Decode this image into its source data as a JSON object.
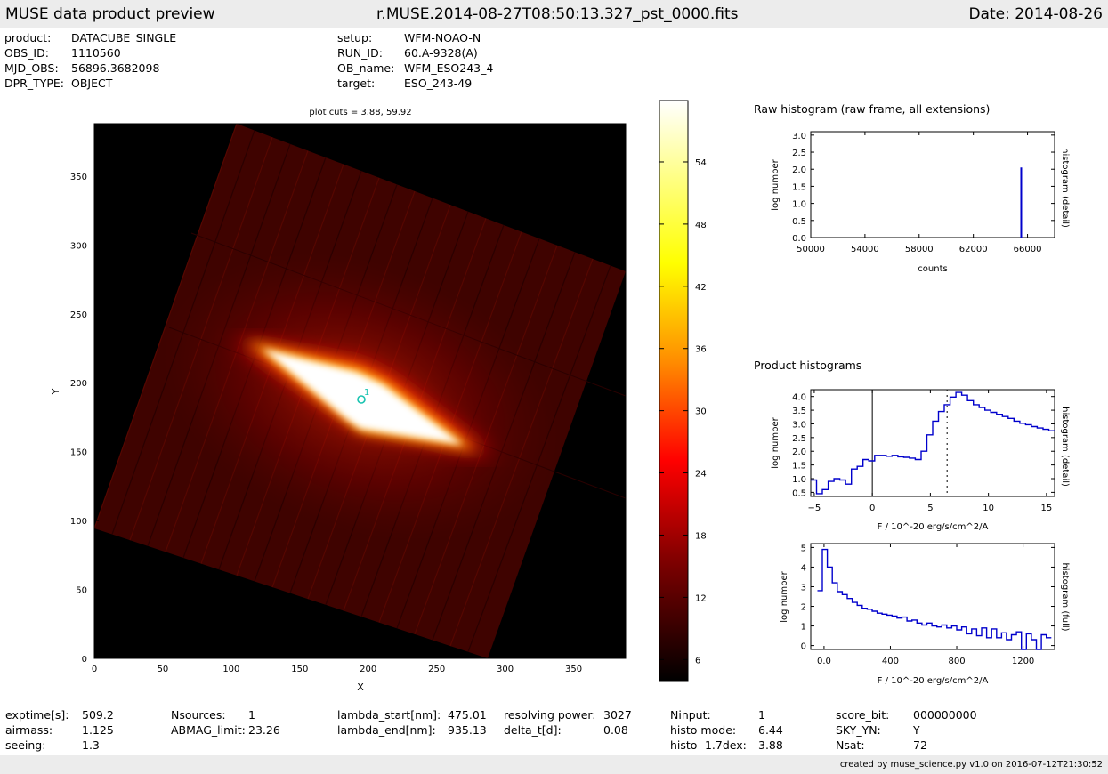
{
  "header": {
    "title": "MUSE data product preview",
    "filename": "r.MUSE.2014-08-27T08:50:13.327_pst_0000.fits",
    "date": "Date: 2014-08-26"
  },
  "info_left": [
    {
      "label": "product:",
      "value": "DATACUBE_SINGLE"
    },
    {
      "label": "OBS_ID:",
      "value": "1110560"
    },
    {
      "label": "MJD_OBS:",
      "value": "56896.3682098"
    },
    {
      "label": "DPR_TYPE:",
      "value": "OBJECT"
    }
  ],
  "info_right": [
    {
      "label": "setup:",
      "value": "WFM-NOAO-N"
    },
    {
      "label": "RUN_ID:",
      "value": "60.A-9328(A)"
    },
    {
      "label": "OB_name:",
      "value": "WFM_ESO243_4"
    },
    {
      "label": "target:",
      "value": "ESO_243-49"
    }
  ],
  "image": {
    "title": "plot cuts = 3.88, 59.92",
    "xlabel": "X",
    "ylabel": "Y",
    "xticks": [
      "0",
      "50",
      "100",
      "150",
      "200",
      "250",
      "300",
      "350"
    ],
    "yticks": [
      "0",
      "50",
      "100",
      "150",
      "200",
      "250",
      "300",
      "350"
    ],
    "source_label": "1",
    "colorbar_ticks": [
      "54",
      "48",
      "42",
      "36",
      "30",
      "24",
      "18",
      "12",
      "6"
    ]
  },
  "raw_hist": {
    "title": "Raw histogram (raw frame, all extensions)",
    "ylabel": "log number",
    "xlabel": "counts",
    "right_label": "histogram (detail)",
    "xticks": [
      "50000",
      "54000",
      "58000",
      "62000",
      "66000"
    ],
    "yticks": [
      "0.0",
      "0.5",
      "1.0",
      "1.5",
      "2.0",
      "2.5",
      "3.0"
    ]
  },
  "product_hist_title": "Product histograms",
  "detail_hist": {
    "ylabel": "log number",
    "xlabel": "F / 10^-20 erg/s/cm^2/A",
    "right_label": "histogram (detail)",
    "xticks": [
      "−5",
      "0",
      "5",
      "10",
      "15"
    ],
    "yticks": [
      "0.5",
      "1.0",
      "1.5",
      "2.0",
      "2.5",
      "3.0",
      "3.5",
      "4.0"
    ]
  },
  "full_hist": {
    "ylabel": "log number",
    "xlabel": "F / 10^-20 erg/s/cm^2/A",
    "right_label": "histogram (full)",
    "xticks": [
      "0.0",
      "400",
      "800",
      "1200"
    ],
    "yticks": [
      "0",
      "1",
      "2",
      "3",
      "4",
      "5"
    ]
  },
  "stats": [
    [
      {
        "label": "exptime[s]:",
        "value": "509.2"
      },
      {
        "label": "airmass:",
        "value": "1.125"
      },
      {
        "label": "seeing:",
        "value": "1.3"
      }
    ],
    [
      {
        "label": "Nsources:",
        "value": "1"
      },
      {
        "label": "ABMAG_limit:",
        "value": "23.26"
      }
    ],
    [
      {
        "label": "lambda_start[nm]:",
        "value": "475.01"
      },
      {
        "label": "lambda_end[nm]:",
        "value": "935.13"
      }
    ],
    [
      {
        "label": "resolving power:",
        "value": "3027"
      },
      {
        "label": "delta_t[d]:",
        "value": "0.08"
      }
    ],
    [
      {
        "label": "Ninput:",
        "value": "1"
      },
      {
        "label": "histo mode:",
        "value": "6.44"
      },
      {
        "label": "histo -1.7dex:",
        "value": "3.88"
      }
    ],
    [
      {
        "label": "score_bit:",
        "value": "000000000"
      },
      {
        "label": "SKY_YN:",
        "value": "Y"
      },
      {
        "label": "Nsat:",
        "value": "72"
      }
    ]
  ],
  "footer": "created by muse_science.py v1.0 on 2016-07-12T21:30:52",
  "colors": {
    "bar_bg": "#ececec",
    "hist_line": "#0000cc",
    "marker": "#19c3b0"
  },
  "chart_data": [
    {
      "type": "heatmap",
      "title": "plot cuts = 3.88, 59.92",
      "xlabel": "X",
      "ylabel": "Y",
      "xlim": [
        0,
        388
      ],
      "ylim": [
        0,
        388
      ],
      "value_range": [
        3.88,
        59.92
      ],
      "colormap": "hot",
      "sources": [
        {
          "id": "1",
          "x": 195,
          "y": 188
        }
      ]
    },
    {
      "type": "bar",
      "title": "Raw histogram (raw frame, all extensions)",
      "xlabel": "counts",
      "ylabel": "log number",
      "xlim": [
        50000,
        68000
      ],
      "ylim": [
        0,
        3.1
      ],
      "x": [
        65535
      ],
      "values": [
        2.05
      ]
    },
    {
      "type": "line",
      "title": "Product histograms",
      "xlabel": "F / 10^-20 erg/s/cm^2/A",
      "ylabel": "log number",
      "xlim": [
        -5.3,
        15.7
      ],
      "ylim": [
        0.35,
        4.25
      ],
      "vlines": [
        0,
        6.44
      ],
      "x": [
        -5.3,
        -4.8,
        -4.3,
        -3.8,
        -3.3,
        -2.8,
        -2.3,
        -1.8,
        -1.3,
        -0.8,
        -0.3,
        0.2,
        0.7,
        1.2,
        1.7,
        2.2,
        2.7,
        3.2,
        3.7,
        4.2,
        4.7,
        5.2,
        5.7,
        6.2,
        6.7,
        7.2,
        7.7,
        8.2,
        8.7,
        9.2,
        9.7,
        10.2,
        10.7,
        11.2,
        11.7,
        12.2,
        12.7,
        13.2,
        13.7,
        14.2,
        14.7,
        15.2
      ],
      "values": [
        0.95,
        0.45,
        0.6,
        0.9,
        1.0,
        0.95,
        0.8,
        1.35,
        1.45,
        1.7,
        1.65,
        1.85,
        1.85,
        1.82,
        1.85,
        1.8,
        1.78,
        1.75,
        1.7,
        2.0,
        2.6,
        3.1,
        3.45,
        3.7,
        3.98,
        4.15,
        4.05,
        3.85,
        3.7,
        3.6,
        3.5,
        3.42,
        3.35,
        3.27,
        3.2,
        3.1,
        3.02,
        2.97,
        2.9,
        2.85,
        2.8,
        2.75
      ]
    },
    {
      "type": "line",
      "title": "",
      "xlabel": "F / 10^-20 erg/s/cm^2/A",
      "ylabel": "log number",
      "xlim": [
        -80,
        1390
      ],
      "ylim": [
        -0.2,
        5.2
      ],
      "x": [
        -40,
        -10,
        20,
        50,
        80,
        110,
        140,
        170,
        200,
        230,
        260,
        290,
        320,
        350,
        380,
        410,
        440,
        470,
        500,
        530,
        560,
        590,
        620,
        650,
        680,
        710,
        740,
        770,
        800,
        830,
        860,
        890,
        920,
        950,
        980,
        1010,
        1040,
        1070,
        1100,
        1130,
        1160,
        1190,
        1220,
        1250,
        1280,
        1310,
        1340
      ],
      "values": [
        2.8,
        4.9,
        4.0,
        3.2,
        2.75,
        2.6,
        2.4,
        2.2,
        2.05,
        1.9,
        1.85,
        1.75,
        1.65,
        1.6,
        1.55,
        1.5,
        1.4,
        1.45,
        1.25,
        1.3,
        1.15,
        1.05,
        1.15,
        1.0,
        0.95,
        1.05,
        0.9,
        1.0,
        0.8,
        0.95,
        0.6,
        0.85,
        0.5,
        0.9,
        0.4,
        0.85,
        0.4,
        0.65,
        0.3,
        0.55,
        0.7,
        0.0,
        0.6,
        0.3,
        0.0,
        0.55,
        0.4
      ]
    }
  ]
}
